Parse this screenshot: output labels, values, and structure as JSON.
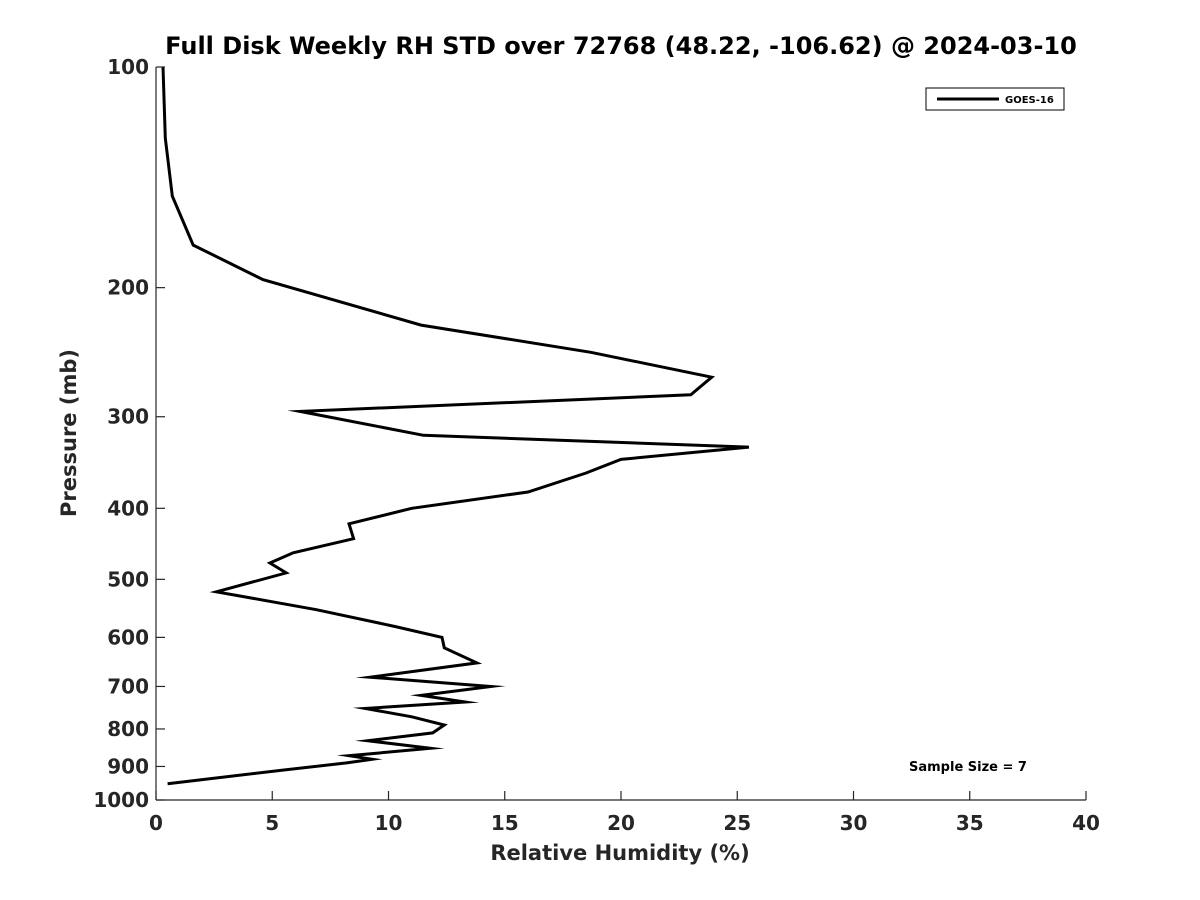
{
  "chart_data": {
    "type": "line",
    "title": "Full Disk Weekly RH STD over 72768 (48.22, -106.62) @ 2024-03-10",
    "xlabel": "Relative Humidity (%)",
    "ylabel": "Pressure (mb)",
    "xlim": [
      0,
      40
    ],
    "ylim": [
      100,
      1000
    ],
    "y_scale": "log",
    "y_reversed": true,
    "xticks": [
      0,
      5,
      10,
      15,
      20,
      25,
      30,
      35,
      40
    ],
    "yticks": [
      100,
      200,
      300,
      400,
      500,
      600,
      700,
      800,
      900,
      1000
    ],
    "grid": false,
    "legend_position": "top-right",
    "series": [
      {
        "name": "GOES-16",
        "color": "#000000",
        "points": [
          [
            0.3,
            100
          ],
          [
            0.4,
            125
          ],
          [
            0.7,
            150
          ],
          [
            1.6,
            175
          ],
          [
            4.6,
            195
          ],
          [
            11.4,
            225
          ],
          [
            18.7,
            245
          ],
          [
            23.9,
            265
          ],
          [
            23.0,
            280
          ],
          [
            6.2,
            295
          ],
          [
            11.5,
            318
          ],
          [
            25.5,
            330
          ],
          [
            20.0,
            343
          ],
          [
            18.5,
            358
          ],
          [
            16.0,
            380
          ],
          [
            11.0,
            400
          ],
          [
            8.3,
            420
          ],
          [
            8.5,
            440
          ],
          [
            5.9,
            460
          ],
          [
            4.9,
            475
          ],
          [
            5.6,
            490
          ],
          [
            2.6,
            520
          ],
          [
            6.9,
            550
          ],
          [
            10.3,
            580
          ],
          [
            12.3,
            600
          ],
          [
            12.4,
            620
          ],
          [
            13.8,
            650
          ],
          [
            9.2,
            680
          ],
          [
            14.4,
            700
          ],
          [
            11.4,
            720
          ],
          [
            13.3,
            735
          ],
          [
            9.0,
            750
          ],
          [
            11.0,
            770
          ],
          [
            12.4,
            790
          ],
          [
            11.9,
            810
          ],
          [
            9.1,
            830
          ],
          [
            11.8,
            850
          ],
          [
            8.3,
            870
          ],
          [
            9.3,
            880
          ],
          [
            8.2,
            890
          ],
          [
            5.5,
            910
          ],
          [
            0.5,
            950
          ]
        ]
      }
    ],
    "annotation": "Sample Size = 7"
  }
}
